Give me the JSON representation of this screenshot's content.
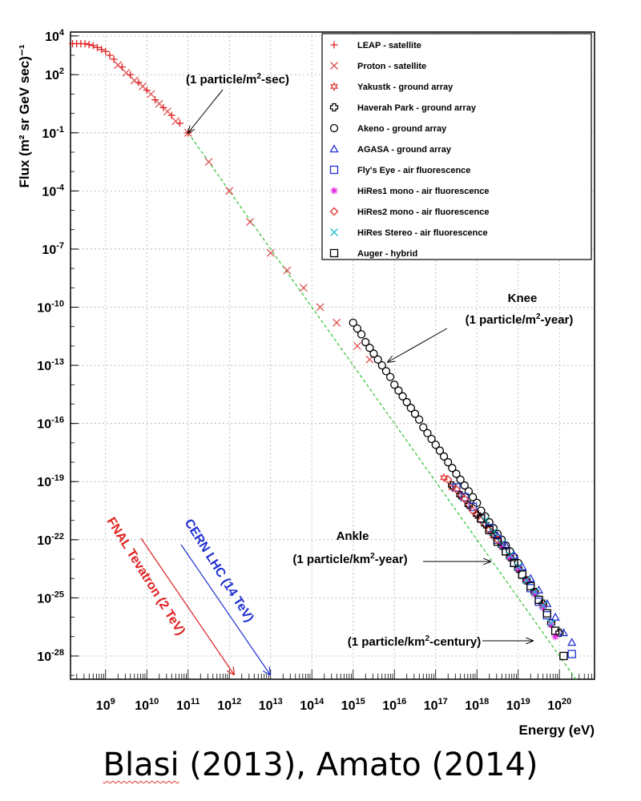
{
  "chart_data": {
    "type": "scatter",
    "xscale": "log",
    "yscale": "log",
    "xlim_exponent": [
      8.15,
      20.85
    ],
    "ylim_exponent": [
      -29.2,
      4.2
    ],
    "xlabel": "Energy (eV)",
    "ylabel": "Flux (m² sr GeV sec)⁻¹",
    "x_ticks": [
      "10^9",
      "10^10",
      "10^11",
      "10^12",
      "10^13",
      "10^14",
      "10^15",
      "10^16",
      "10^17",
      "10^18",
      "10^19",
      "10^20"
    ],
    "y_ticks": [
      "10^4",
      "10^2",
      "10^-1",
      "10^-4",
      "10^-7",
      "10^-10",
      "10^-13",
      "10^-16",
      "10^-19",
      "10^-22",
      "10^-25",
      "10^-28"
    ],
    "grid": true,
    "legend_position": "top-right",
    "series": [
      {
        "name": "LEAP - satellite",
        "marker": "plus",
        "color": "#e02020",
        "x_exp": [
          8.2,
          8.3,
          8.4,
          8.5,
          8.6,
          8.7,
          8.8,
          8.9,
          9.0,
          9.1,
          9.2,
          9.4,
          9.6,
          9.8,
          10.0,
          10.2,
          10.4,
          10.6,
          10.8,
          11.0
        ],
        "y_exp": [
          3.6,
          3.6,
          3.6,
          3.6,
          3.55,
          3.5,
          3.4,
          3.3,
          3.2,
          3.0,
          2.8,
          2.4,
          2.0,
          1.6,
          1.2,
          0.7,
          0.3,
          -0.1,
          -0.5,
          -1.0
        ]
      },
      {
        "name": "Proton - satellite",
        "marker": "x",
        "color": "#e05050",
        "x_exp": [
          9.3,
          9.5,
          9.7,
          9.9,
          10.1,
          10.3,
          10.5,
          10.7,
          11.0,
          11.5,
          12.0,
          12.5,
          13.0,
          13.4,
          13.8,
          14.2,
          14.6,
          15.1,
          15.4
        ],
        "y_exp": [
          2.5,
          2.1,
          1.7,
          1.4,
          1.0,
          0.5,
          0.1,
          -0.4,
          -1.0,
          -2.5,
          -4.0,
          -5.6,
          -7.2,
          -8.1,
          -9.0,
          -10.0,
          -10.8,
          -12.0,
          -12.7
        ]
      },
      {
        "name": "Yakustk - ground array",
        "marker": "star",
        "color": "#e04040",
        "x_exp": [
          17.2,
          17.4,
          17.6,
          17.8,
          18.0,
          18.2,
          18.4,
          18.6,
          18.8,
          19.0,
          19.2,
          19.4,
          19.6
        ],
        "y_exp": [
          -18.8,
          -19.3,
          -19.7,
          -20.2,
          -20.7,
          -21.2,
          -21.8,
          -22.3,
          -22.9,
          -23.5,
          -24.1,
          -24.7,
          -25.4
        ]
      },
      {
        "name": "Haverah Park - ground array",
        "marker": "cross",
        "color": "#000000",
        "x_exp": [
          17.4,
          17.6,
          17.8,
          18.0,
          18.2,
          18.4,
          18.6,
          18.8,
          19.0,
          19.2,
          19.4,
          19.6,
          19.8,
          20.0
        ],
        "y_exp": [
          -19.2,
          -19.7,
          -20.2,
          -20.7,
          -21.2,
          -21.7,
          -22.3,
          -22.9,
          -23.5,
          -24.1,
          -24.7,
          -25.3,
          -26.3,
          -26.8
        ]
      },
      {
        "name": "Akeno - ground array",
        "marker": "circle",
        "color": "#000000",
        "x_exp": [
          15.0,
          15.1,
          15.2,
          15.3,
          15.4,
          15.5,
          15.6,
          15.7,
          15.8,
          15.9,
          16.0,
          16.1,
          16.2,
          16.3,
          16.4,
          16.5,
          16.6,
          16.7,
          16.8,
          16.9,
          17.0,
          17.1,
          17.2,
          17.3,
          17.4,
          17.5,
          17.6,
          17.7,
          17.8,
          17.9,
          18.0,
          18.1,
          18.2,
          18.3,
          18.4,
          18.5,
          18.6,
          18.7,
          18.8,
          18.9,
          19.0
        ],
        "y_exp": [
          -10.8,
          -11.1,
          -11.4,
          -11.8,
          -12.1,
          -12.4,
          -12.7,
          -13.0,
          -13.3,
          -13.6,
          -14.0,
          -14.3,
          -14.6,
          -14.9,
          -15.2,
          -15.5,
          -15.8,
          -16.2,
          -16.5,
          -16.8,
          -17.1,
          -17.4,
          -17.7,
          -18.0,
          -18.3,
          -18.6,
          -18.9,
          -19.2,
          -19.5,
          -19.8,
          -20.1,
          -20.5,
          -20.8,
          -21.1,
          -21.4,
          -21.7,
          -22.0,
          -22.3,
          -22.6,
          -22.9,
          -23.2
        ]
      },
      {
        "name": "AGASA - ground array",
        "marker": "triangle",
        "color": "#2030d0",
        "x_exp": [
          18.5,
          18.7,
          18.9,
          19.1,
          19.3,
          19.5,
          19.7,
          19.9,
          20.1,
          20.3
        ],
        "y_exp": [
          -21.8,
          -22.3,
          -22.8,
          -23.4,
          -24.0,
          -24.6,
          -25.3,
          -26.0,
          -26.8,
          -27.3
        ]
      },
      {
        "name": "Fly's Eye - air fluorescence",
        "marker": "square",
        "color": "#2030d0",
        "x_exp": [
          17.5,
          17.7,
          17.9,
          18.1,
          18.3,
          18.5,
          18.7,
          18.9,
          19.1,
          19.3,
          19.5,
          19.7,
          20.3
        ],
        "y_exp": [
          -19.3,
          -19.8,
          -20.3,
          -20.9,
          -21.4,
          -22.0,
          -22.6,
          -23.2,
          -23.8,
          -24.5,
          -25.2,
          -25.9,
          -27.9
        ]
      },
      {
        "name": "HiRes1 mono - air fluorescence",
        "marker": "asterisk",
        "color": "#e020e0",
        "x_exp": [
          18.6,
          18.8,
          19.0,
          19.2,
          19.4,
          19.6,
          19.8,
          19.9
        ],
        "y_exp": [
          -22.3,
          -22.9,
          -23.5,
          -24.1,
          -24.8,
          -25.5,
          -26.4,
          -27.0
        ]
      },
      {
        "name": "HiRes2 mono - air fluorescence",
        "marker": "diamond",
        "color": "#e03030",
        "x_exp": [
          17.3,
          17.5,
          17.7,
          17.9,
          18.1,
          18.3,
          18.5
        ],
        "y_exp": [
          -18.9,
          -19.4,
          -19.9,
          -20.5,
          -21.0,
          -21.5,
          -22.0
        ]
      },
      {
        "name": "HiRes Stereo - air fluorescence",
        "marker": "x",
        "color": "#20c0d0",
        "x_exp": [
          18.2,
          18.4,
          18.6,
          18.8,
          19.0,
          19.2,
          19.4,
          19.6,
          19.8
        ],
        "y_exp": [
          -21.0,
          -21.6,
          -22.2,
          -22.8,
          -23.4,
          -24.1,
          -24.7,
          -25.4,
          -26.3
        ]
      },
      {
        "name": "Auger - hybrid",
        "marker": "square",
        "color": "#000000",
        "x_exp": [
          18.1,
          18.3,
          18.5,
          18.7,
          18.9,
          19.1,
          19.3,
          19.5,
          19.7,
          19.9,
          20.1
        ],
        "y_exp": [
          -20.9,
          -21.5,
          -22.1,
          -22.6,
          -23.2,
          -23.8,
          -24.4,
          -25.1,
          -25.8,
          -26.7,
          -28.0
        ]
      }
    ],
    "fit_line": {
      "x_exp": [
        11.0,
        20.4
      ],
      "y_exp": [
        -1.0,
        -29.2
      ],
      "color": "#30c030",
      "style": "dashed"
    },
    "annotations": [
      {
        "parts": [
          "(1 particle/m",
          "2",
          "-sec)"
        ],
        "arrow_to": [
          11.0,
          -1.0
        ]
      },
      {
        "parts": [
          "Knee"
        ],
        "arrow_to": null
      },
      {
        "parts": [
          "(1 particle/m",
          "2",
          "-year)"
        ],
        "arrow_to": [
          15.9,
          -13.0
        ]
      },
      {
        "parts": [
          "Ankle"
        ],
        "arrow_to": null
      },
      {
        "parts": [
          "(1 particle/km",
          "2",
          "-year)"
        ],
        "arrow_to": [
          18.8,
          -23.0
        ]
      },
      {
        "parts": [
          "(1 particle/km",
          "2",
          "-century)"
        ],
        "arrow_to": [
          19.7,
          -26.4
        ]
      }
    ],
    "rotated_labels": [
      {
        "text": "FNAL Tevatron (2 TeV)",
        "color": "#e02020"
      },
      {
        "text": "CERN LHC (14 TeV)",
        "color": "#2030d0"
      }
    ]
  },
  "caption": {
    "squiggled": "Blasi",
    "rest": " (2013), Amato (2014)"
  },
  "colors": {
    "fnal": "#e02020",
    "lhc": "#2030d0",
    "fit": "#30c030",
    "grid": "#b0b0b0"
  }
}
